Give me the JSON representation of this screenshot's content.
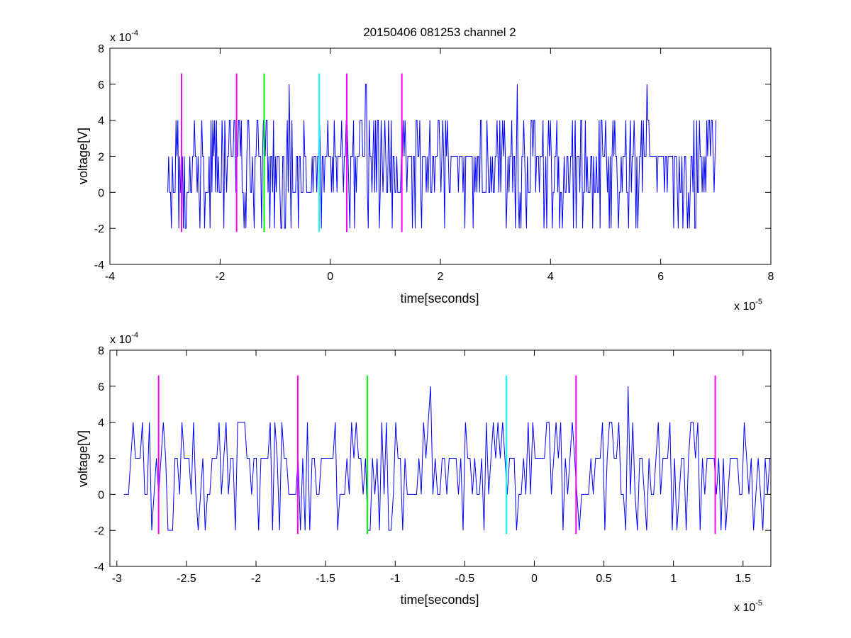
{
  "chart_data": [
    {
      "type": "line",
      "title": "20150406 081253 channel 2",
      "xlabel": "time[seconds]",
      "ylabel": "voltage[V]",
      "x_exponent_text": "x 10",
      "x_exponent": "-5",
      "y_exponent_text": "x 10",
      "y_exponent": "-4",
      "xlim": [
        -4,
        8
      ],
      "ylim": [
        -4,
        8
      ],
      "x_ticks": [
        -4,
        -2,
        0,
        2,
        4,
        6,
        8
      ],
      "x_tick_labels": [
        "-4",
        "-2",
        "0",
        "2",
        "4",
        "6",
        "8"
      ],
      "y_ticks": [
        -4,
        -2,
        0,
        2,
        4,
        6,
        8
      ],
      "y_tick_labels": [
        "-4",
        "-2",
        "0",
        "2",
        "4",
        "6",
        "8"
      ],
      "grid": false,
      "signal": {
        "color": "#0000ff",
        "x_start": -2.95,
        "x_end": 7.0,
        "step": 0.0167,
        "levels": [
          -2,
          0,
          2,
          4,
          6
        ],
        "baseline": 2,
        "peaks_at_6": [
          -0.75,
          0.65,
          3.4,
          5.75
        ],
        "quiet_intervals": [
          [
            2.2,
            2.7
          ],
          [
            5.8,
            6.3
          ]
        ]
      },
      "markers": [
        {
          "x": -2.7,
          "color": "#ff00ff",
          "y_low": -2.2,
          "y_high": 6.6
        },
        {
          "x": -1.7,
          "color": "#ff00ff",
          "y_low": -2.2,
          "y_high": 6.6
        },
        {
          "x": -1.2,
          "color": "#00ff00",
          "y_low": -2.2,
          "y_high": 6.6
        },
        {
          "x": -0.2,
          "color": "#00ffff",
          "y_low": -2.2,
          "y_high": 6.6
        },
        {
          "x": 0.3,
          "color": "#ff00ff",
          "y_low": -2.2,
          "y_high": 6.6
        },
        {
          "x": 1.3,
          "color": "#ff00ff",
          "y_low": -2.2,
          "y_high": 6.6
        }
      ]
    },
    {
      "type": "line",
      "title": "",
      "xlabel": "time[seconds]",
      "ylabel": "voltage[V]",
      "x_exponent_text": "x 10",
      "x_exponent": "-5",
      "y_exponent_text": "x 10",
      "y_exponent": "-4",
      "xlim": [
        -3.05,
        1.7
      ],
      "ylim": [
        -4,
        8
      ],
      "x_ticks": [
        -3,
        -2.5,
        -2,
        -1.5,
        -1,
        -0.5,
        0,
        0.5,
        1,
        1.5
      ],
      "x_tick_labels": [
        "-3",
        "-2.5",
        "-2",
        "-1.5",
        "-1",
        "-0.5",
        "0",
        "0.5",
        "1",
        "1.5"
      ],
      "y_ticks": [
        -4,
        -2,
        0,
        2,
        4,
        6,
        8
      ],
      "y_tick_labels": [
        "-4",
        "-2",
        "0",
        "2",
        "4",
        "6",
        "8"
      ],
      "grid": false,
      "signal": {
        "color": "#0000ff",
        "x_start": -2.95,
        "x_end": 1.7,
        "step": 0.0167,
        "levels": [
          -2,
          0,
          2,
          4,
          6
        ],
        "baseline": 2,
        "peaks_at_6": [
          -0.75,
          0.67
        ]
      },
      "markers": [
        {
          "x": -2.7,
          "color": "#ff00ff",
          "y_low": -2.2,
          "y_high": 6.6
        },
        {
          "x": -1.7,
          "color": "#ff00ff",
          "y_low": -2.2,
          "y_high": 6.6
        },
        {
          "x": -1.2,
          "color": "#00ff00",
          "y_low": -2.2,
          "y_high": 6.6
        },
        {
          "x": -0.2,
          "color": "#00ffff",
          "y_low": -2.2,
          "y_high": 6.6
        },
        {
          "x": 0.3,
          "color": "#ff00ff",
          "y_low": -2.2,
          "y_high": 6.6
        },
        {
          "x": 1.3,
          "color": "#ff00ff",
          "y_low": -2.2,
          "y_high": 6.6
        }
      ]
    }
  ]
}
